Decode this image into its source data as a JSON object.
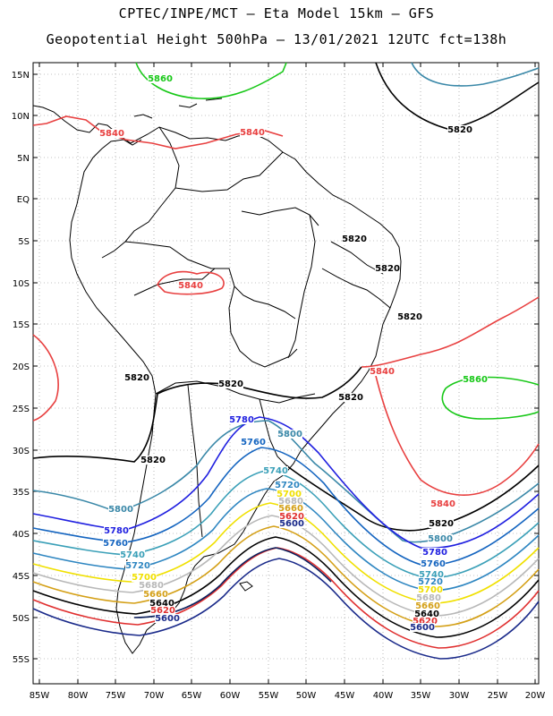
{
  "header": {
    "line1": "CPTEC/INPE/MCT –  Eta Model 15km – GFS",
    "line2": "Geopotential Height 500hPa – 13/01/2021 12UTC fct=138h"
  },
  "axes": {
    "lat_labels": [
      "15N",
      "10N",
      "5N",
      "EQ",
      "5S",
      "10S",
      "15S",
      "20S",
      "25S",
      "30S",
      "35S",
      "40S",
      "45S",
      "50S",
      "55S"
    ],
    "lon_labels": [
      "85W",
      "80W",
      "75W",
      "70W",
      "65W",
      "60W",
      "55W",
      "50W",
      "45W",
      "40W",
      "35W",
      "30W",
      "25W",
      "20W"
    ],
    "lat_range": [
      -58,
      16
    ],
    "lon_range": [
      -86,
      -20
    ],
    "grid": "dotted"
  },
  "contour_colors": {
    "5580": "#0b1f5c",
    "5600": "#1a2a8a",
    "5620": "#e03030",
    "5640": "#000000",
    "5660": "#d4a017",
    "5680": "#b8b8b8",
    "5700": "#f0e000",
    "5720": "#2e86c1",
    "5740": "#3ba0b8",
    "5760": "#1565c0",
    "5780": "#2020e0",
    "5800": "#3a88a8",
    "5820": "#000000",
    "5840": "#e84040",
    "5860": "#18c818"
  },
  "contour_labels": [
    {
      "text": "5860",
      "color": "#18c818"
    },
    {
      "text": "5840",
      "color": "#e84040"
    },
    {
      "text": "5840",
      "color": "#e84040"
    },
    {
      "text": "5820",
      "color": "#000000"
    },
    {
      "text": "5820",
      "color": "#000000"
    },
    {
      "text": "5820",
      "color": "#000000"
    },
    {
      "text": "5820",
      "color": "#000000"
    },
    {
      "text": "5840",
      "color": "#e84040"
    },
    {
      "text": "5820",
      "color": "#000000"
    },
    {
      "text": "5820",
      "color": "#000000"
    },
    {
      "text": "5820",
      "color": "#000000"
    },
    {
      "text": "5840",
      "color": "#e84040"
    },
    {
      "text": "5860",
      "color": "#18c818"
    },
    {
      "text": "5780",
      "color": "#2020e0"
    },
    {
      "text": "5800",
      "color": "#3a88a8"
    },
    {
      "text": "5760",
      "color": "#1565c0"
    },
    {
      "text": "5740",
      "color": "#3ba0b8"
    },
    {
      "text": "5820",
      "color": "#000000"
    },
    {
      "text": "5720",
      "color": "#2e86c1"
    },
    {
      "text": "5700",
      "color": "#f0e000"
    },
    {
      "text": "5680",
      "color": "#b8b8b8"
    },
    {
      "text": "5660",
      "color": "#d4a017"
    },
    {
      "text": "5620",
      "color": "#e03030"
    },
    {
      "text": "5600",
      "color": "#1a2a8a"
    },
    {
      "text": "5800",
      "color": "#3a88a8"
    },
    {
      "text": "5780",
      "color": "#2020e0"
    },
    {
      "text": "5760",
      "color": "#1565c0"
    },
    {
      "text": "5740",
      "color": "#3ba0b8"
    },
    {
      "text": "5720",
      "color": "#2e86c1"
    },
    {
      "text": "5700",
      "color": "#f0e000"
    },
    {
      "text": "5680",
      "color": "#b8b8b8"
    },
    {
      "text": "5660",
      "color": "#d4a017"
    },
    {
      "text": "5640",
      "color": "#000000"
    },
    {
      "text": "5620",
      "color": "#e03030"
    },
    {
      "text": "5600",
      "color": "#1a2a8a"
    },
    {
      "text": "5840",
      "color": "#e84040"
    },
    {
      "text": "5820",
      "color": "#000000"
    },
    {
      "text": "5800",
      "color": "#3a88a8"
    },
    {
      "text": "5780",
      "color": "#2020e0"
    },
    {
      "text": "5760",
      "color": "#1565c0"
    },
    {
      "text": "5740",
      "color": "#3ba0b8"
    },
    {
      "text": "5720",
      "color": "#2e86c1"
    },
    {
      "text": "5700",
      "color": "#f0e000"
    },
    {
      "text": "5680",
      "color": "#b8b8b8"
    },
    {
      "text": "5660",
      "color": "#d4a017"
    },
    {
      "text": "5640",
      "color": "#000000"
    },
    {
      "text": "5620",
      "color": "#e03030"
    },
    {
      "text": "5600",
      "color": "#1a2a8a"
    }
  ]
}
